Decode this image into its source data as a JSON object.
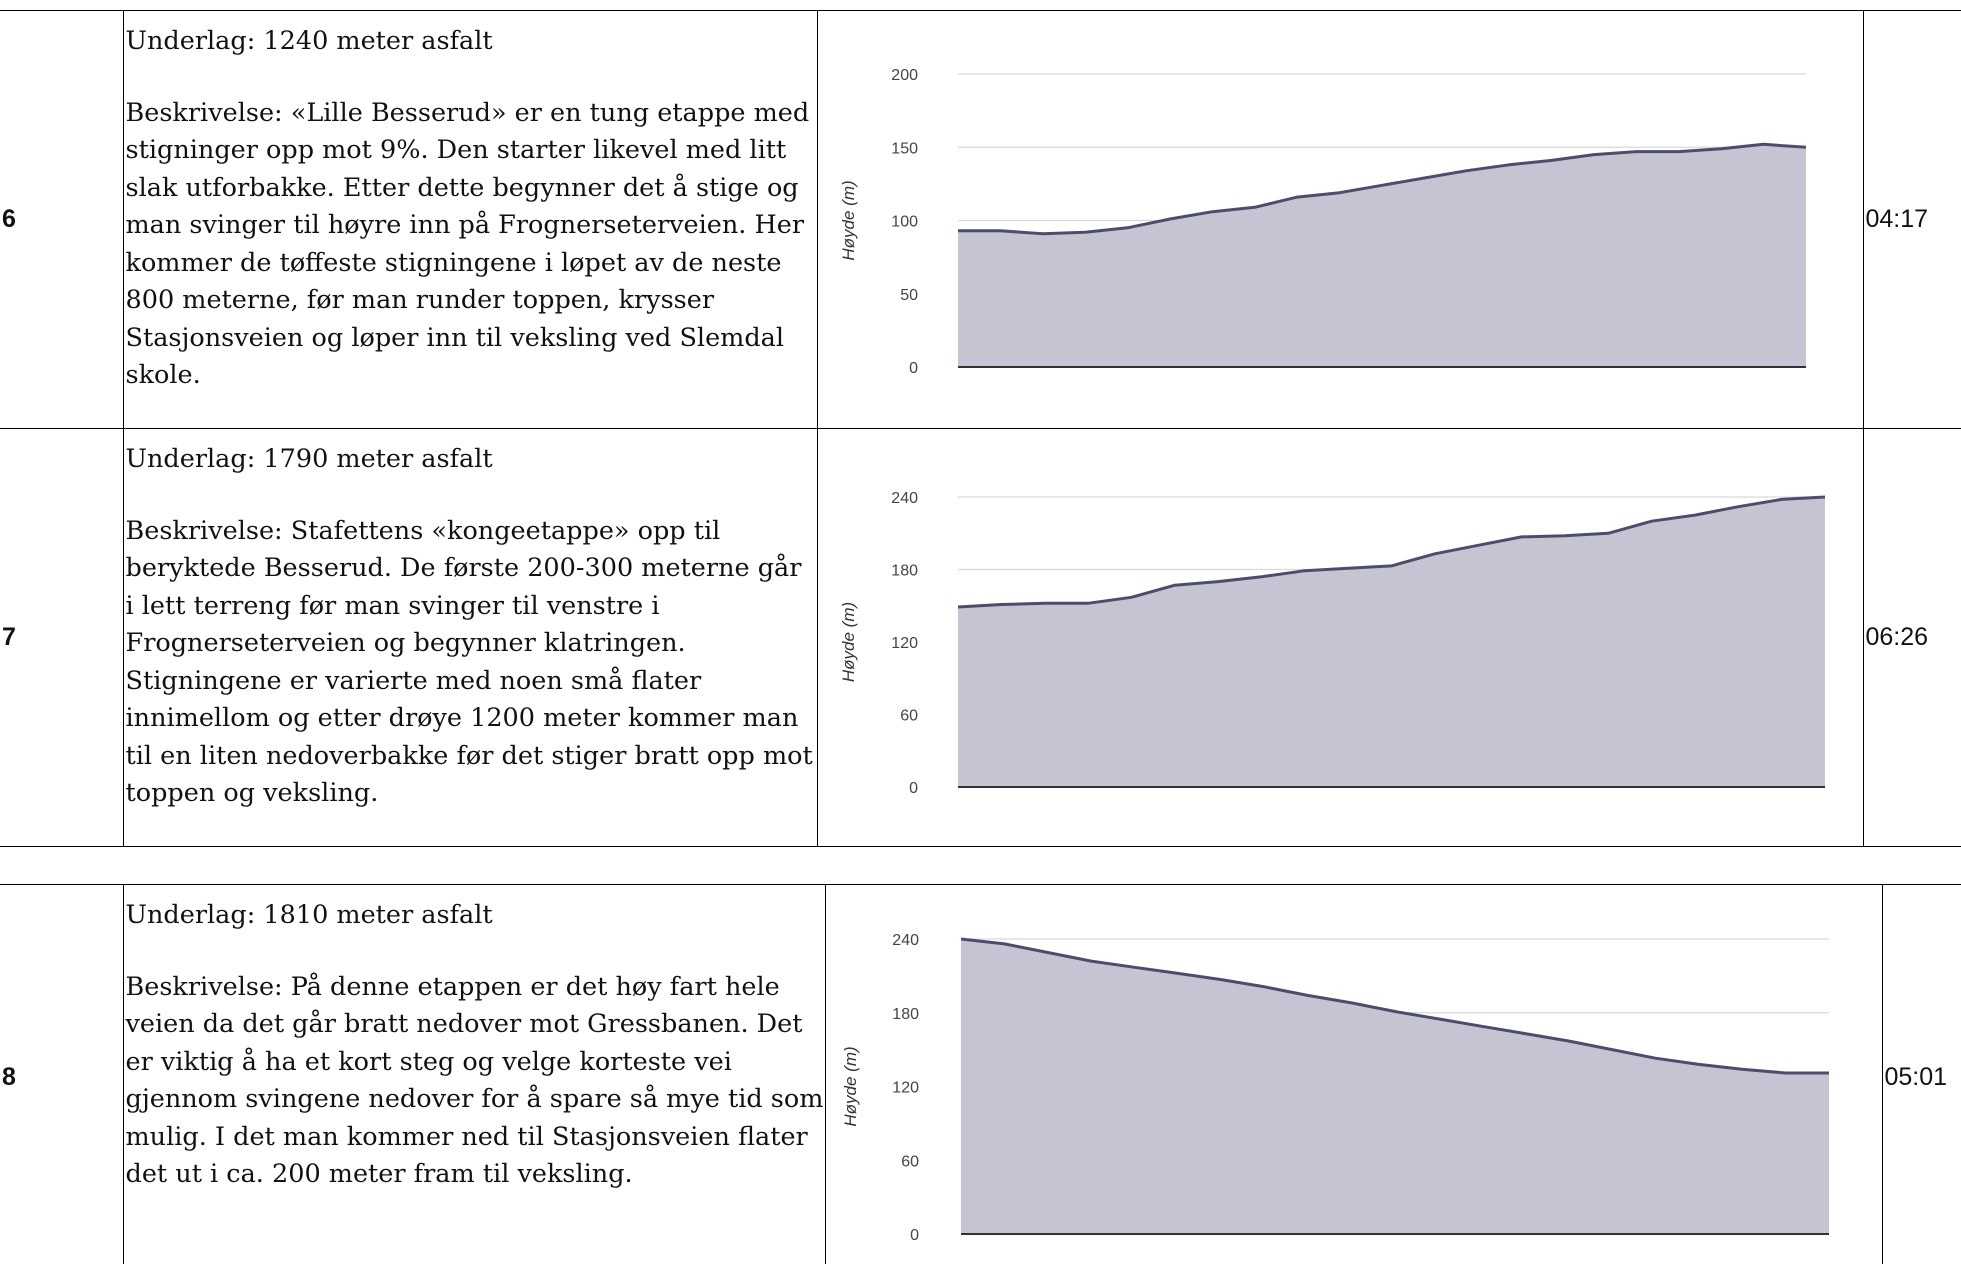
{
  "stages": [
    {
      "number": "6",
      "surface": "Underlag: 1240 meter asfalt",
      "description": "Beskrivelse: «Lille Besserud» er en tung etappe med stigninger opp mot 9%. Den starter likevel med litt slak utforbakke. Etter dette begynner det å stige og man svinger til høyre inn på Frognerseterveien. Her kommer de tøffeste stigningene i løpet av de neste 800 meterne, før man runder toppen, krysser Stasjonsveien og løper inn til veksling ved Slemdal skole.",
      "time": "04:17"
    },
    {
      "number": "7",
      "surface": "Underlag: 1790 meter asfalt",
      "description": "Beskrivelse: Stafettens «kongeetappe» opp til beryktede Besserud. De første 200-300 meterne går i lett terreng før man svinger til venstre i Frognerseterveien og begynner klatringen. Stigningene er varierte med noen små flater innimellom og etter drøye 1200 meter kommer man til en liten nedoverbakke før det stiger bratt opp mot toppen og veksling.",
      "time": "06:26"
    },
    {
      "number": "8",
      "surface": "Underlag: 1810 meter asfalt",
      "description": "Beskrivelse: På denne etappen er det høy fart hele veien da det går bratt nedover mot Gressbanen. Det er viktig å ha et kort steg og velge korteste vei gjennom svingene nedover for å spare så mye tid som mulig. I det man kommer ned til Stasjonsveien flater det ut i ca. 200 meter fram til veksling.",
      "time": "05:01"
    }
  ],
  "chart_data": [
    {
      "type": "area",
      "ylabel": "Høyde (m)",
      "ylim": [
        0,
        200
      ],
      "yticks": [
        "200",
        "150",
        "100",
        "50",
        "0"
      ],
      "grid": true,
      "fill_color": "#c4c4d3",
      "line_color": "#4d4d6b",
      "x": [
        0,
        0.05,
        0.1,
        0.15,
        0.2,
        0.25,
        0.3,
        0.35,
        0.4,
        0.45,
        0.5,
        0.55,
        0.6,
        0.65,
        0.7,
        0.75,
        0.8,
        0.85,
        0.9,
        0.95,
        1.0
      ],
      "y": [
        93,
        93,
        91,
        92,
        95,
        101,
        106,
        109,
        116,
        119,
        124,
        129,
        134,
        138,
        141,
        145,
        147,
        147,
        149,
        152,
        150
      ]
    },
    {
      "type": "area",
      "ylabel": "Høyde (m)",
      "ylim": [
        0,
        240
      ],
      "yticks": [
        "240",
        "180",
        "120",
        "60",
        "0"
      ],
      "grid": true,
      "fill_color": "#c4c4d3",
      "line_color": "#4d4d6b",
      "x": [
        0,
        0.05,
        0.1,
        0.15,
        0.2,
        0.25,
        0.3,
        0.35,
        0.4,
        0.45,
        0.5,
        0.55,
        0.6,
        0.65,
        0.7,
        0.75,
        0.8,
        0.85,
        0.9,
        0.95,
        1.0
      ],
      "y": [
        149,
        151,
        152,
        152,
        157,
        167,
        170,
        174,
        179,
        181,
        183,
        193,
        200,
        207,
        208,
        210,
        220,
        225,
        232,
        238,
        240
      ]
    },
    {
      "type": "area",
      "ylabel": "Høyde (m)",
      "ylim": [
        0,
        240
      ],
      "yticks": [
        "240",
        "180",
        "120",
        "60",
        "0"
      ],
      "grid": true,
      "fill_color": "#c4c4d3",
      "line_color": "#4d4d6b",
      "x": [
        0,
        0.05,
        0.1,
        0.15,
        0.2,
        0.25,
        0.3,
        0.35,
        0.4,
        0.45,
        0.5,
        0.55,
        0.6,
        0.65,
        0.7,
        0.75,
        0.8,
        0.85,
        0.9,
        0.95,
        1.0
      ],
      "y": [
        240,
        236,
        229,
        222,
        217,
        212,
        207,
        201,
        194,
        188,
        181,
        175,
        169,
        163,
        157,
        150,
        143,
        138,
        134,
        131,
        131
      ]
    }
  ]
}
